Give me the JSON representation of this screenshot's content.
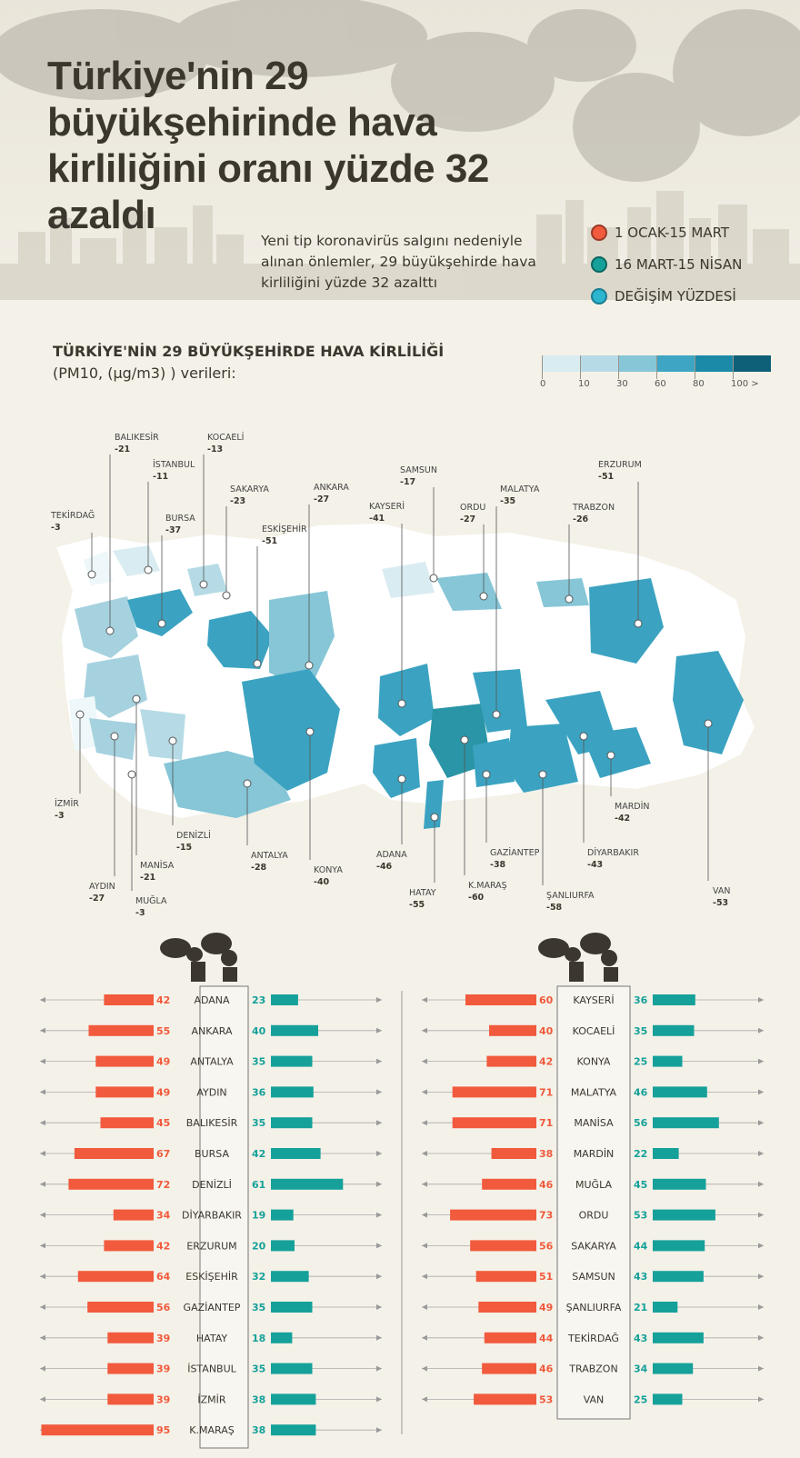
{
  "header": {
    "title": "Türkiye'nin 29 büyükşehirinde hava kirliliğini oranı yüzde 32 azaldı",
    "subtitle": "Yeni tip koronavirüs salgını nedeniyle alınan önlemler, 29 büyükşehirde hava kirliliğini yüzde 32 azalttı"
  },
  "legend": [
    {
      "label": "1 OCAK-15 MART",
      "color": "#f15a3c"
    },
    {
      "label": "16 MART-15 NİSAN",
      "color": "#15a19a"
    },
    {
      "label": "DEĞİŞİM YÜZDESİ",
      "color": "#2bb5cf"
    }
  ],
  "map": {
    "heading": "TÜRKİYE'NİN 29 BÜYÜKŞEHİRDE HAVA KİRLİLİĞİ",
    "subheading": "(PM10, (µg/m3) ) verileri:",
    "scale_labels": [
      "0",
      "10",
      "30",
      "60",
      "80",
      "100 >"
    ],
    "scale_colors": [
      "#d9ecf1",
      "#b6dbe6",
      "#86c6d7",
      "#3ea6c4",
      "#1b8aa8",
      "#0e6079"
    ]
  },
  "chart_data": {
    "type": "bar",
    "categories": [
      "ADANA",
      "ANKARA",
      "ANTALYA",
      "AYDIN",
      "BALIKESİR",
      "BURSA",
      "DENİZLİ",
      "DİYARBAKIR",
      "ERZURUM",
      "ESKİŞEHİR",
      "GAZİANTEP",
      "HATAY",
      "İSTANBUL",
      "İZMİR",
      "K.MARAŞ",
      "KAYSERİ",
      "KOCAELİ",
      "KONYA",
      "MALATYA",
      "MANİSA",
      "MARDİN",
      "MUĞLA",
      "ORDU",
      "SAKARYA",
      "SAMSUN",
      "ŞANLIURFA",
      "TEKİRDAĞ",
      "TRABZON",
      "VAN"
    ],
    "series": [
      {
        "name": "1 OCAK-15 MART",
        "values": [
          42,
          55,
          49,
          49,
          45,
          67,
          72,
          34,
          42,
          64,
          56,
          39,
          39,
          39,
          95,
          60,
          40,
          42,
          71,
          71,
          38,
          46,
          73,
          56,
          51,
          49,
          44,
          46,
          53
        ]
      },
      {
        "name": "16 MART-15 NİSAN",
        "values": [
          23,
          40,
          35,
          36,
          35,
          42,
          61,
          19,
          20,
          32,
          35,
          18,
          35,
          38,
          38,
          36,
          35,
          25,
          46,
          56,
          22,
          45,
          53,
          44,
          43,
          21,
          43,
          34,
          25
        ]
      },
      {
        "name": "DEĞİŞİM YÜZDESİ",
        "values": [
          -46,
          -27,
          -28,
          -27,
          -21,
          -37,
          -15,
          -43,
          -51,
          -51,
          -38,
          -55,
          -11,
          -3,
          -60,
          -41,
          -13,
          -40,
          -35,
          -21,
          -42,
          -3,
          -27,
          -23,
          -17,
          -58,
          -3,
          -26,
          -53
        ]
      }
    ]
  }
}
